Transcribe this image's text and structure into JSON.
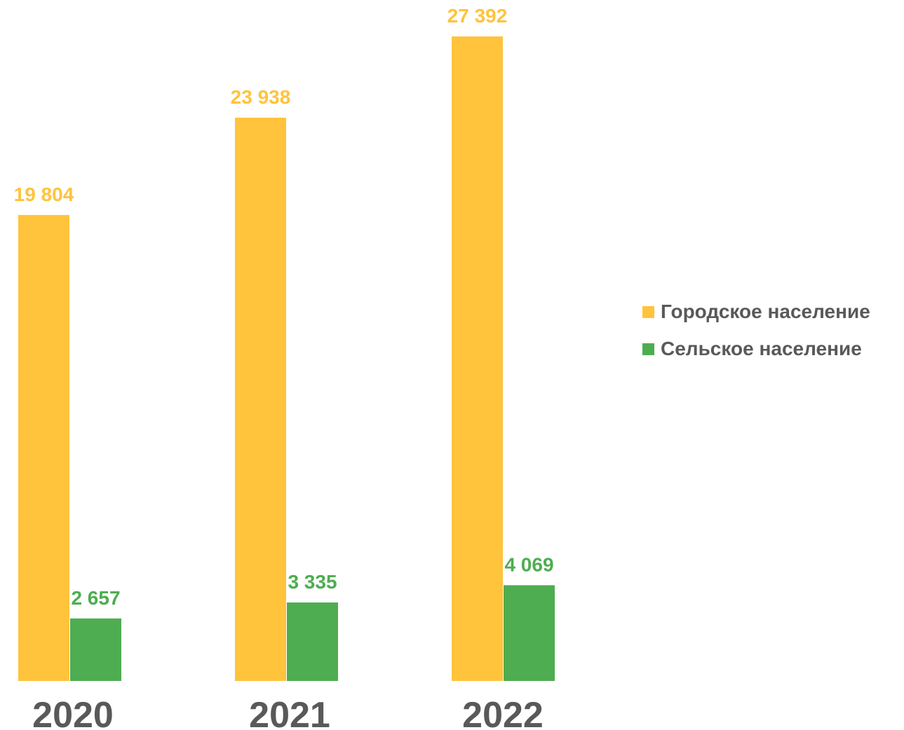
{
  "chart_data": {
    "type": "bar",
    "categories": [
      "2020",
      "2021",
      "2022"
    ],
    "series": [
      {
        "name": "Городское население",
        "values": [
          19804,
          23938,
          27392
        ],
        "labels": [
          "19 804",
          "23 938",
          "27 392"
        ],
        "color": "#FFC33C"
      },
      {
        "name": "Сельское население",
        "values": [
          2657,
          3335,
          4069
        ],
        "labels": [
          "2 657",
          "3 335",
          "4 069"
        ],
        "color": "#4EAD50"
      }
    ],
    "title": "",
    "xlabel": "",
    "ylabel": "",
    "ylim": [
      0,
      27392
    ],
    "grid": false,
    "legend": "right"
  },
  "legend": {
    "items": [
      {
        "label": "Городское население",
        "color": "#FFC33C"
      },
      {
        "label": "Сельское население",
        "color": "#4EAD50"
      }
    ]
  }
}
